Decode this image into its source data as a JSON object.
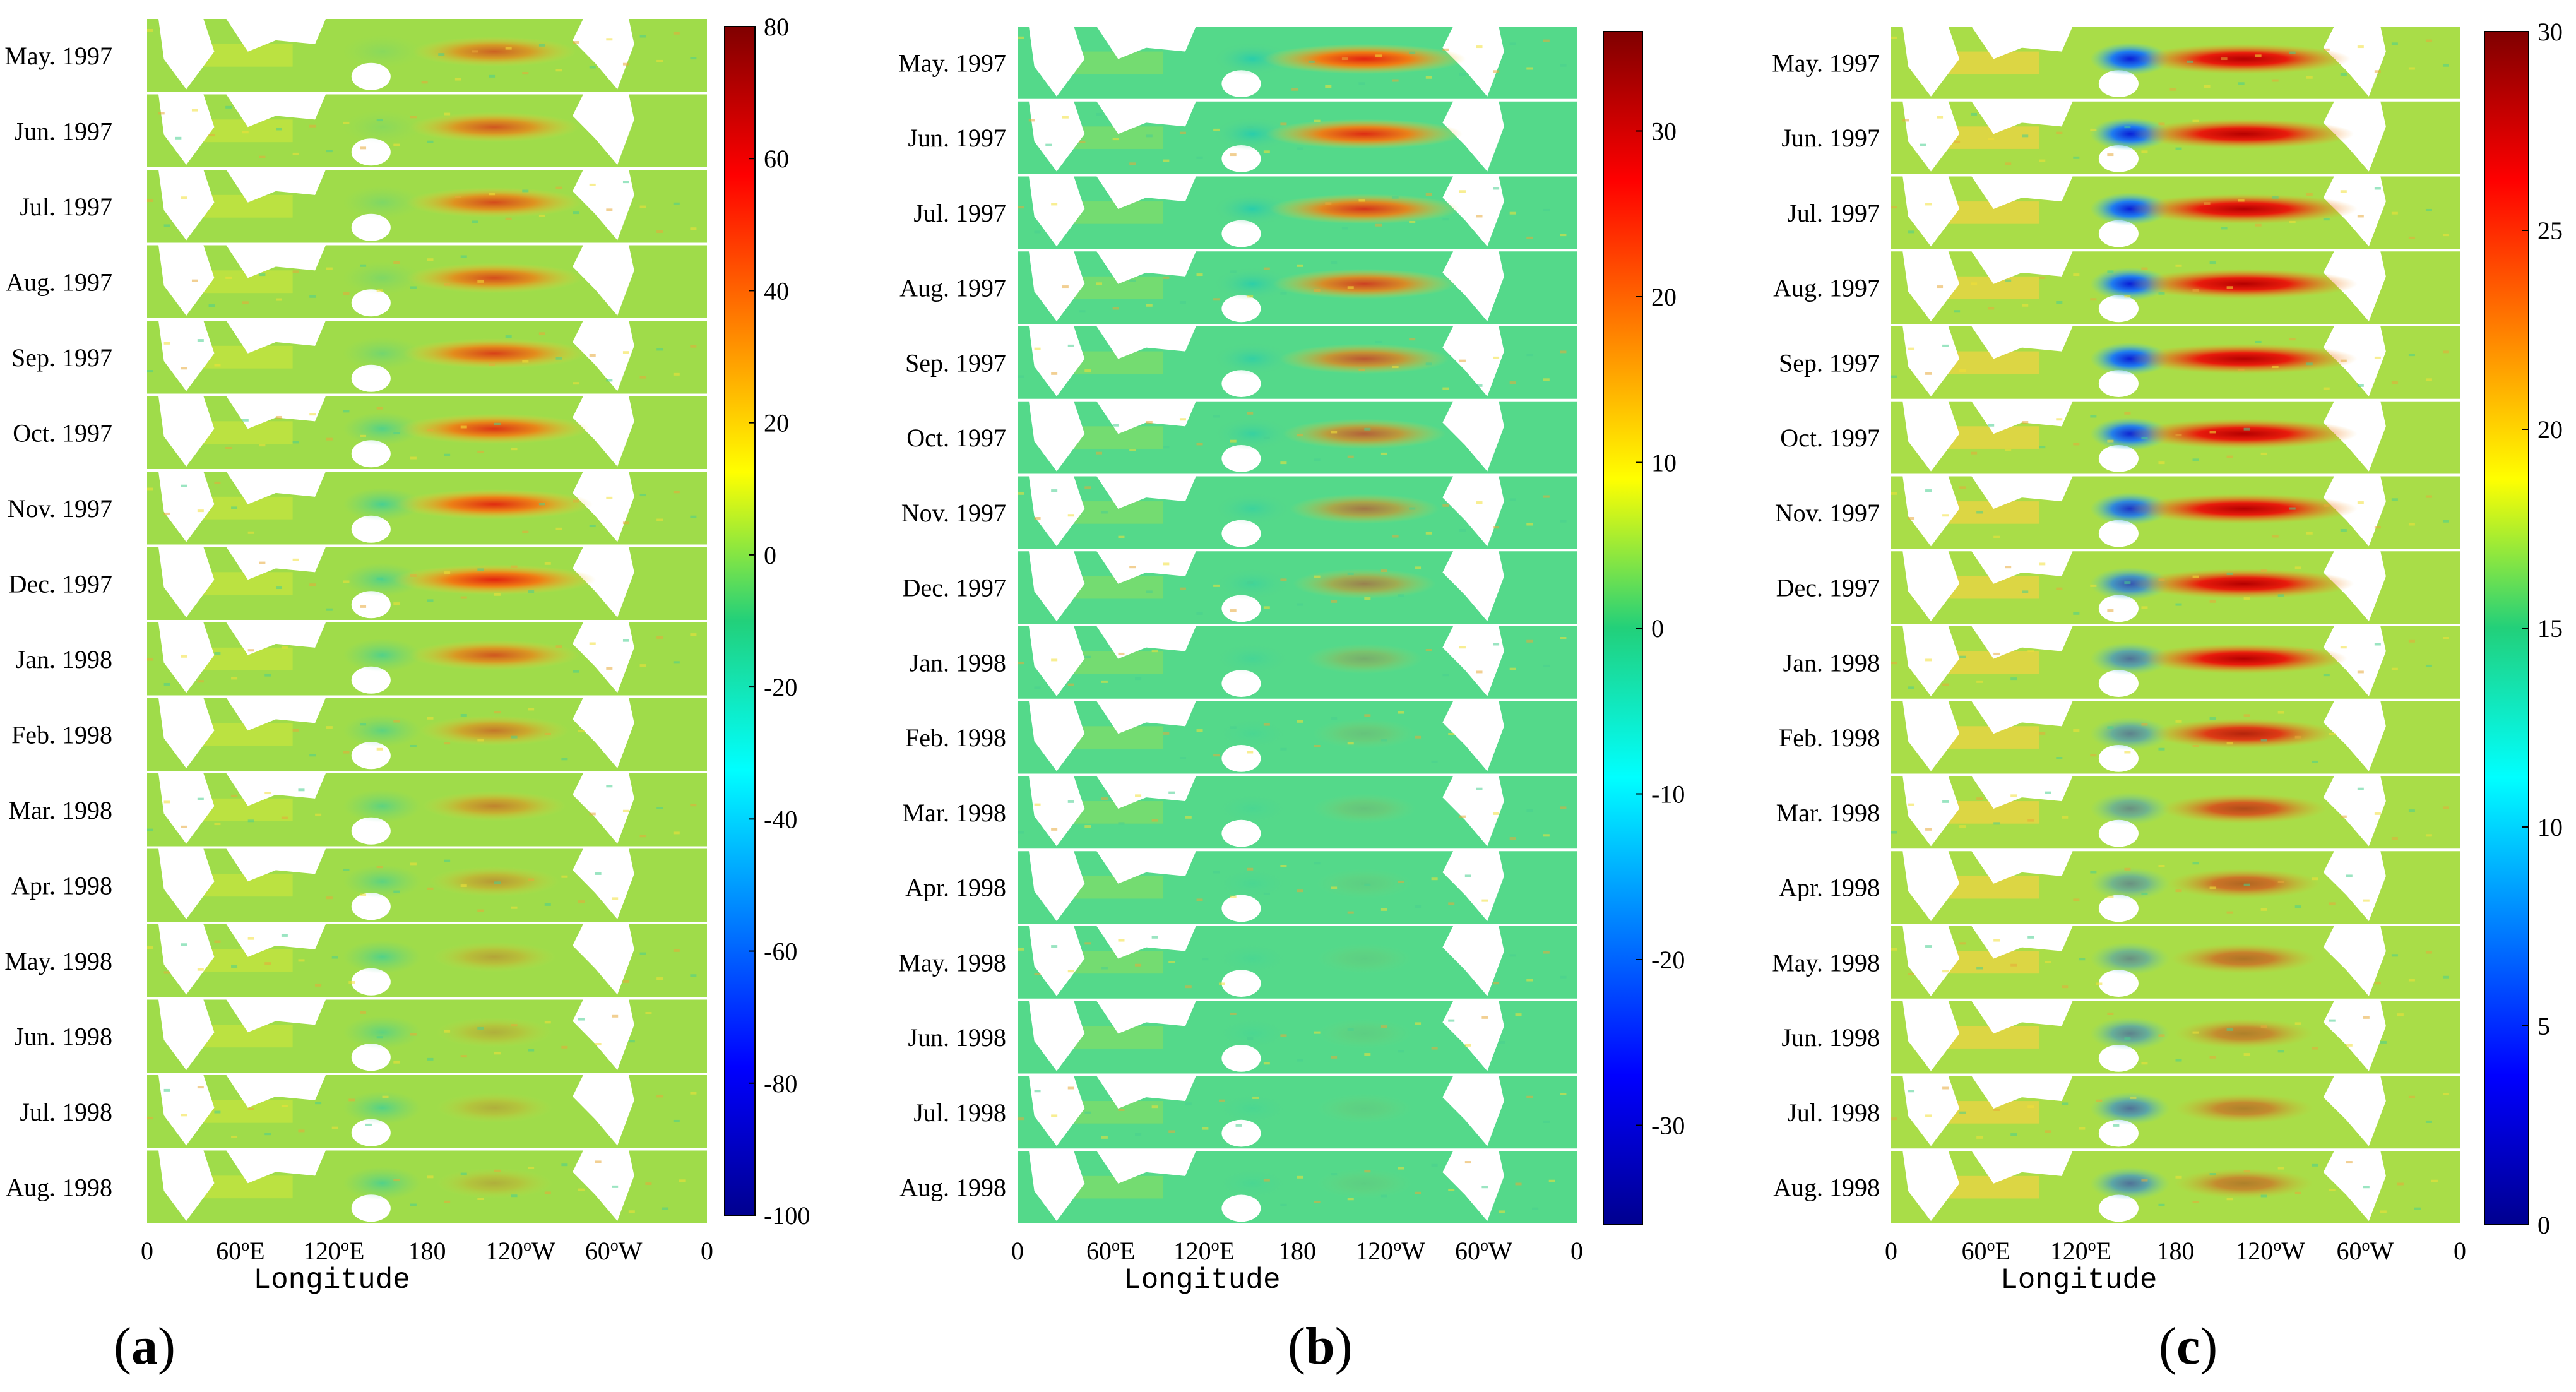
{
  "figure": {
    "xlabel": "Longitude",
    "longitude_ticks": [
      "0",
      "60",
      "120",
      "180",
      "120",
      "60",
      "0"
    ],
    "longitude_tick_suffix": [
      "",
      "E",
      "E",
      "",
      "W",
      "W",
      ""
    ],
    "longitude_tick_degrees": [
      "",
      "o",
      "o",
      "",
      "o",
      "o",
      ""
    ],
    "month_labels_a": [
      "May. 1997",
      "Jun. 1997",
      "Jul. 1997",
      "Aug. 1997",
      "Sep. 1997",
      "Oct. 1997",
      "Nov. 1997",
      "Dec. 1997",
      "Jan. 1998",
      "Feb. 1998",
      "Mar. 1998",
      "Apr. 1998",
      "May. 1998",
      "Jun. 1998",
      "Jul. 1998",
      "Aug. 1998"
    ],
    "month_labels_b": [
      "May. 1997",
      "Jun. 1997",
      "Jul. 1997",
      "Aug. 1997",
      "Sep. 1997",
      "Oct. 1997",
      "Nov. 1997",
      "Dec. 1997",
      "Jan. 1998",
      "Feb. 1998",
      "Mar. 1998",
      "Apr. 1998",
      "May. 1998",
      "Jun. 1998",
      "Jul. 1998",
      "Aug. 1998"
    ],
    "month_labels_c": [
      "May. 1997",
      "Jun. 1997",
      "Jul. 1997",
      "Aug. 1997",
      "Sep. 1997",
      "Oct. 1997",
      "Nov. 1997",
      "Dec. 1997",
      "Jan. 1998",
      "Feb. 1998",
      "Mar. 1998",
      "Apr. 1998",
      "May. 1998",
      "Jun. 1998",
      "Jul. 1998",
      "Aug. 1998"
    ]
  },
  "chart_data": [
    {
      "type": "heatmap",
      "panel": "a",
      "panel_label": "a",
      "xlabel": "Longitude",
      "rows": [
        "May. 1997",
        "Jun. 1997",
        "Jul. 1997",
        "Aug. 1997",
        "Sep. 1997",
        "Oct. 1997",
        "Nov. 1997",
        "Dec. 1997",
        "Jan. 1998",
        "Feb. 1998",
        "Mar. 1998",
        "Apr. 1998",
        "May. 1998",
        "Jun. 1998",
        "Jul. 1998",
        "Aug. 1998"
      ],
      "colorbar": {
        "min": -100,
        "max": 80,
        "ticks": [
          80,
          60,
          40,
          20,
          0,
          -20,
          -40,
          -60,
          -80,
          -100
        ]
      },
      "eastern_pacific_intensity": [
        0.55,
        0.6,
        0.65,
        0.65,
        0.7,
        0.75,
        0.8,
        0.85,
        0.6,
        0.45,
        0.4,
        0.3,
        0.25,
        0.2,
        0.2,
        0.2
      ],
      "western_pacific_intensity": [
        0.1,
        0.1,
        0.15,
        0.15,
        0.2,
        0.35,
        0.4,
        0.35,
        0.35,
        0.3,
        0.3,
        0.3,
        0.35,
        0.3,
        0.35,
        0.35
      ]
    },
    {
      "type": "heatmap",
      "panel": "b",
      "panel_label": "b",
      "xlabel": "Longitude",
      "rows": [
        "May. 1997",
        "Jun. 1997",
        "Jul. 1997",
        "Aug. 1997",
        "Sep. 1997",
        "Oct. 1997",
        "Nov. 1997",
        "Dec. 1997",
        "Jan. 1998",
        "Feb. 1998",
        "Mar. 1998",
        "Apr. 1998",
        "May. 1998",
        "Jun. 1998",
        "Jul. 1998",
        "Aug. 1998"
      ],
      "colorbar": {
        "min": -36,
        "max": 36,
        "ticks": [
          30,
          20,
          10,
          0,
          -10,
          -20,
          -30
        ]
      },
      "eastern_pacific_intensity": [
        0.85,
        0.8,
        0.75,
        0.7,
        0.6,
        0.55,
        0.45,
        0.4,
        0.2,
        0.1,
        0.1,
        0.05,
        0.05,
        0.05,
        0.05,
        0.05
      ],
      "western_pacific_intensity": [
        0.45,
        0.45,
        0.45,
        0.4,
        0.35,
        0.3,
        0.25,
        0.2,
        0.15,
        0.1,
        0.1,
        0.1,
        0.1,
        0.1,
        0.1,
        0.1
      ]
    },
    {
      "type": "heatmap",
      "panel": "c",
      "panel_label": "c",
      "xlabel": "Longitude",
      "rows": [
        "May. 1997",
        "Jun. 1997",
        "Jul. 1997",
        "Aug. 1997",
        "Sep. 1997",
        "Oct. 1997",
        "Nov. 1997",
        "Dec. 1997",
        "Jan. 1998",
        "Feb. 1998",
        "Mar. 1998",
        "Apr. 1998",
        "May. 1998",
        "Jun. 1998",
        "Jul. 1998",
        "Aug. 1998"
      ],
      "colorbar": {
        "min": 0,
        "max": 30,
        "ticks": [
          30,
          25,
          20,
          15,
          10,
          5,
          0
        ]
      },
      "eastern_pacific_intensity": [
        0.9,
        0.95,
        1.0,
        1.0,
        1.0,
        1.0,
        1.0,
        0.95,
        0.85,
        0.7,
        0.55,
        0.45,
        0.4,
        0.35,
        0.35,
        0.35
      ],
      "western_pacific_intensity": [
        0.75,
        0.75,
        0.75,
        0.7,
        0.65,
        0.6,
        0.55,
        0.45,
        0.35,
        0.3,
        0.25,
        0.25,
        0.25,
        0.3,
        0.35,
        0.35
      ]
    }
  ]
}
